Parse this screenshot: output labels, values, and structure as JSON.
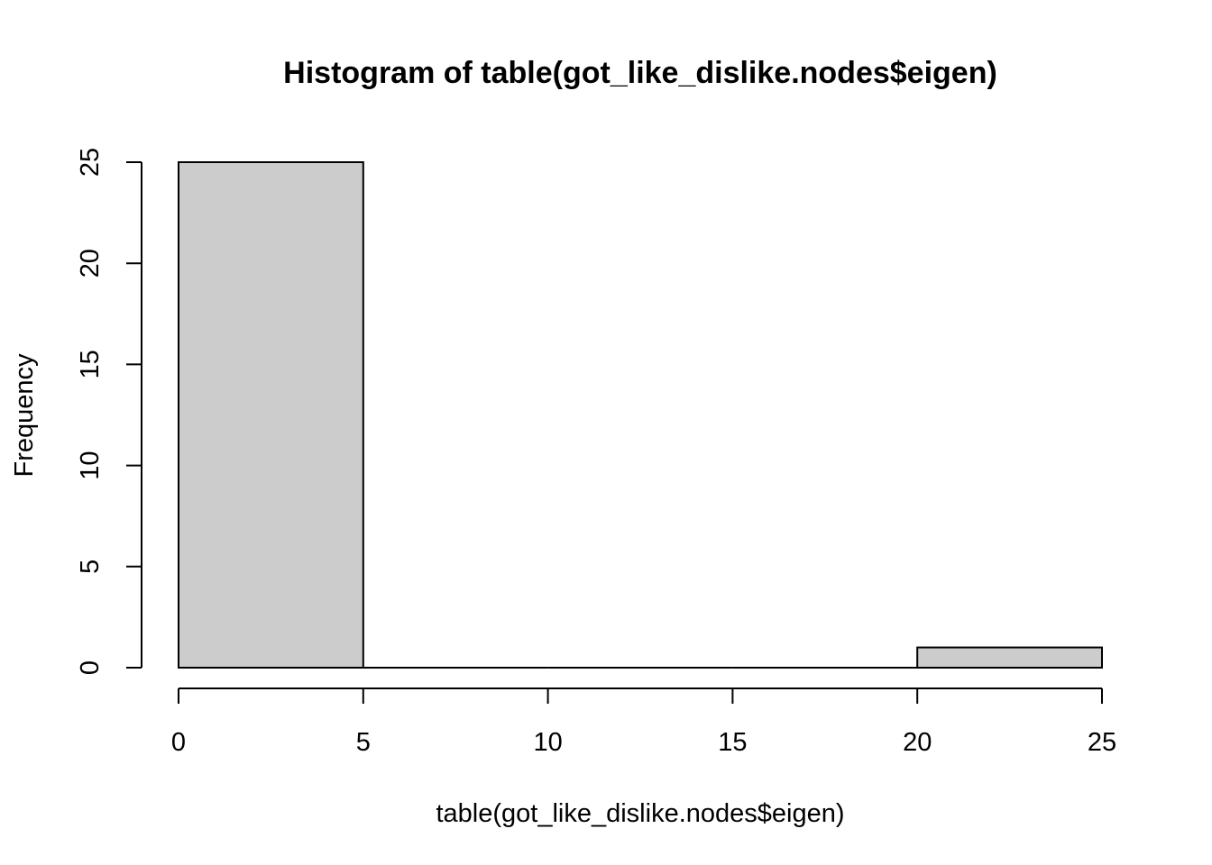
{
  "chart_data": {
    "type": "bar",
    "subtype": "histogram",
    "title": "Histogram of table(got_like_dislike.nodes$eigen)",
    "xlabel": "table(got_like_dislike.nodes$eigen)",
    "ylabel": "Frequency",
    "bins": [
      {
        "start": 0,
        "end": 5,
        "count": 25
      },
      {
        "start": 5,
        "end": 10,
        "count": 0
      },
      {
        "start": 10,
        "end": 15,
        "count": 0
      },
      {
        "start": 15,
        "end": 20,
        "count": 0
      },
      {
        "start": 20,
        "end": 25,
        "count": 1
      }
    ],
    "xlim": [
      0,
      25
    ],
    "ylim": [
      0,
      25
    ],
    "x_ticks": [
      "0",
      "5",
      "10",
      "15",
      "20",
      "25"
    ],
    "y_ticks": [
      "0",
      "5",
      "10",
      "15",
      "20",
      "25"
    ],
    "bar_fill": "#cccccc",
    "bar_stroke": "#000000",
    "grid": false,
    "legend": "none"
  }
}
